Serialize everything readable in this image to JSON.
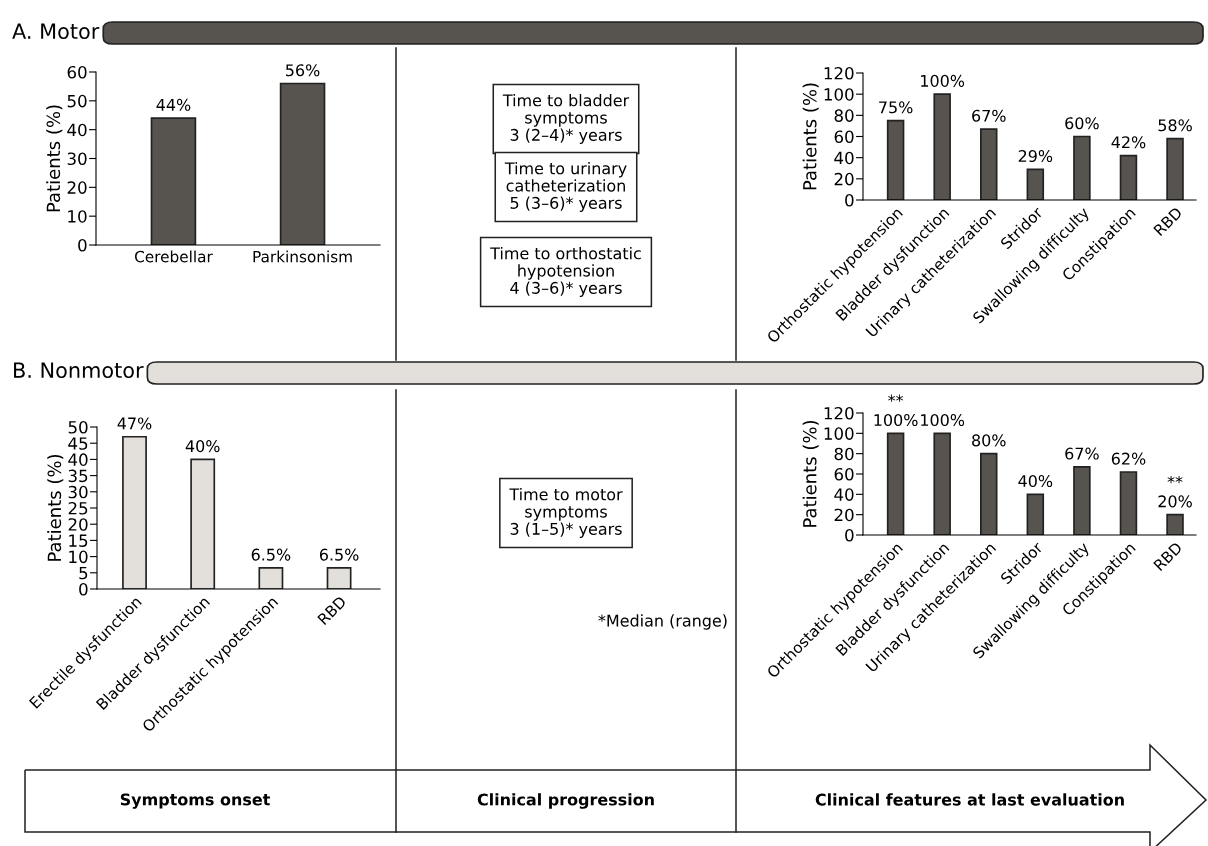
{
  "chart_data": [
    {
      "type": "bar",
      "title": "A. Motor",
      "categories": [
        "Cerebellar",
        "Parkinsonism"
      ],
      "values": [
        44,
        56
      ],
      "value_labels": [
        "44%",
        "56%"
      ],
      "color": "#57534f",
      "ylabel": "Patients (%)",
      "ylim": [
        0,
        60
      ],
      "yticks": [
        0,
        10,
        20,
        30,
        40,
        50,
        60
      ]
    },
    {
      "type": "other",
      "annotations": [
        "Time to bladder\nsymptoms\n3 (2–4)* years",
        "Time to urinary\ncatheterization\n5 (3–6)* years",
        "Time to orthostatic\nhypotension\n4 (3–6)* years"
      ]
    },
    {
      "type": "bar",
      "categories": [
        "Orthostatic hypotension",
        "Bladder dysfunction",
        "Urinary catheterization",
        "Stridor",
        "Swallowing difficulty",
        "Constipation",
        "RBD"
      ],
      "values": [
        75,
        100,
        67,
        29,
        60,
        42,
        58
      ],
      "value_labels": [
        "75%",
        "100%",
        "67%",
        "29%",
        "60%",
        "42%",
        "58%"
      ],
      "color": "#57534f",
      "ylabel": "Patients (%)",
      "ylim": [
        0,
        120
      ],
      "yticks": [
        0,
        20,
        40,
        60,
        80,
        100,
        120
      ]
    },
    {
      "type": "bar",
      "title": "B. Nonmotor",
      "categories": [
        "Erectile dysfunction",
        "Bladder dysfunction",
        "Orthostatic hypotension",
        "RBD"
      ],
      "values": [
        47,
        40,
        6.5,
        6.5
      ],
      "value_labels": [
        "47%",
        "40%",
        "6.5%",
        "6.5%"
      ],
      "color": "#e3e0dc",
      "ylabel": "Patients (%)",
      "ylim": [
        0,
        50
      ],
      "yticks": [
        0,
        5,
        10,
        15,
        20,
        25,
        30,
        35,
        40,
        45,
        50
      ]
    },
    {
      "type": "other",
      "annotations": [
        "Time to motor\nsymptoms\n3 (1–5)* years"
      ],
      "subtitle": "*Median (range)"
    },
    {
      "type": "bar",
      "categories": [
        "Orthostatic hypotension",
        "Bladder dysfunction",
        "Urinary catheterization",
        "Stridor",
        "Swallowing difficulty",
        "Constipation",
        "RBD"
      ],
      "values": [
        100,
        100,
        80,
        40,
        67,
        62,
        20
      ],
      "value_labels": [
        "100%",
        "100%",
        "80%",
        "40%",
        "67%",
        "62%",
        "20%"
      ],
      "color": "#57534f",
      "ylabel": "Patients (%)",
      "ylim": [
        0,
        120
      ],
      "yticks": [
        0,
        20,
        40,
        60,
        80,
        100,
        120
      ],
      "annotations": [
        {
          "text": "**",
          "x": "Orthostatic hypotension",
          "y": 100
        },
        {
          "text": "**",
          "x": "RBD",
          "y": 20
        }
      ]
    },
    {
      "type": "other",
      "annotations": [
        "Symptoms onset",
        "Clinical progression",
        "Clinical features at last evaluation"
      ]
    }
  ]
}
